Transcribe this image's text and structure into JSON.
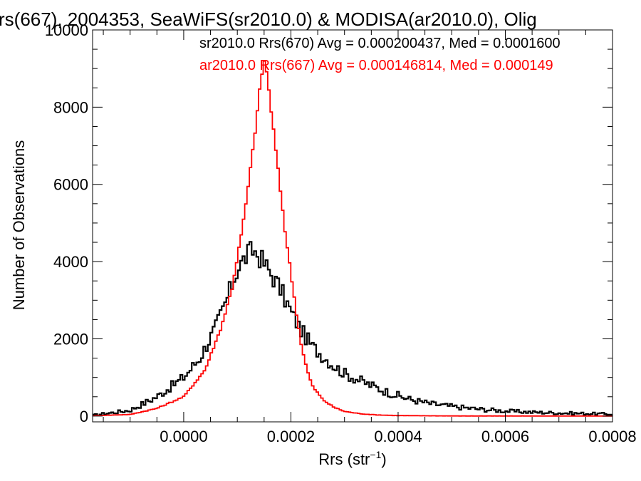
{
  "chart_data": {
    "type": "line",
    "title": "rs(667), 2004353, SeaWiFS(sr2010.0) & MODISA(ar2010.0), Olig",
    "xlabel_main": "Rrs (str",
    "xlabel_sup": "−1",
    "xlabel_close": ")",
    "ylabel": "Number of Observations",
    "xlim": [
      -0.00017,
      0.0008
    ],
    "ylim": [
      -150,
      10000
    ],
    "xticks": [
      "0.0000",
      "0.0002",
      "0.0004",
      "0.0006",
      "0.0008"
    ],
    "xtick_values": [
      0.0,
      0.0002,
      0.0004,
      0.0006,
      0.0008
    ],
    "yticks": [
      "0",
      "2000",
      "4000",
      "6000",
      "8000",
      "10000"
    ],
    "ytick_values": [
      0,
      2000,
      4000,
      6000,
      8000,
      10000
    ],
    "grid": false,
    "legend_position": "top-right",
    "series": [
      {
        "legend": "sr2010.0 Rrs(670) Avg = 0.000200437, Med = 0.0001600",
        "color": "#000000",
        "anchors": [
          [
            -0.00017,
            20
          ],
          [
            -0.0001,
            150
          ],
          [
            -5e-05,
            500
          ],
          [
            0.0,
            1000
          ],
          [
            3e-05,
            1500
          ],
          [
            6e-05,
            2300
          ],
          [
            8e-05,
            3000
          ],
          [
            0.0001,
            3800
          ],
          [
            0.00012,
            4200
          ],
          [
            0.00013,
            4300
          ],
          [
            0.00014,
            4150
          ],
          [
            0.00016,
            3750
          ],
          [
            0.00018,
            3300
          ],
          [
            0.0002,
            2700
          ],
          [
            0.00022,
            2200
          ],
          [
            0.00024,
            1800
          ],
          [
            0.00026,
            1550
          ],
          [
            0.00028,
            1300
          ],
          [
            0.0003,
            1100
          ],
          [
            0.00034,
            850
          ],
          [
            0.00038,
            620
          ],
          [
            0.00042,
            440
          ],
          [
            0.00046,
            320
          ],
          [
            0.0005,
            250
          ],
          [
            0.00055,
            180
          ],
          [
            0.0006,
            130
          ],
          [
            0.00065,
            100
          ],
          [
            0.0007,
            80
          ],
          [
            0.00075,
            65
          ],
          [
            0.0008,
            50
          ]
        ]
      },
      {
        "legend": "ar2010.0 Rrs(667) Avg = 0.000146814, Med = 0.000149",
        "color": "#ff0000",
        "anchors": [
          [
            -0.00017,
            10
          ],
          [
            -0.0001,
            40
          ],
          [
            -5e-05,
            200
          ],
          [
            0.0,
            500
          ],
          [
            4e-05,
            1200
          ],
          [
            7e-05,
            2300
          ],
          [
            9e-05,
            3300
          ],
          [
            0.00011,
            4900
          ],
          [
            0.00012,
            5900
          ],
          [
            0.00013,
            7000
          ],
          [
            0.00014,
            8200
          ],
          [
            0.000145,
            8800
          ],
          [
            0.00015,
            9200
          ],
          [
            0.000155,
            8900
          ],
          [
            0.00016,
            8300
          ],
          [
            0.00017,
            7100
          ],
          [
            0.00018,
            5900
          ],
          [
            0.00019,
            4700
          ],
          [
            0.0002,
            3700
          ],
          [
            0.00021,
            2700
          ],
          [
            0.00022,
            1800
          ],
          [
            0.00023,
            1200
          ],
          [
            0.00024,
            780
          ],
          [
            0.00026,
            420
          ],
          [
            0.00028,
            230
          ],
          [
            0.0003,
            120
          ],
          [
            0.00033,
            60
          ],
          [
            0.00036,
            30
          ],
          [
            0.0004,
            12
          ],
          [
            0.0005,
            3
          ],
          [
            0.0008,
            0
          ]
        ]
      }
    ]
  }
}
